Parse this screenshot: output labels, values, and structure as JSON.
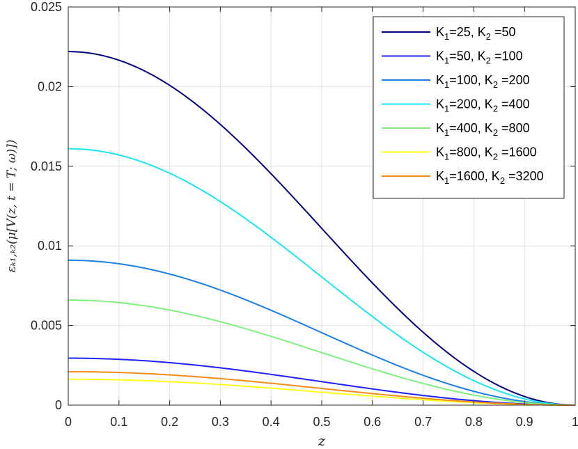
{
  "chart_data": {
    "type": "line",
    "xlabel": "z",
    "ylabel": "εₖ₁,ₖ₂(μ[V(z, t = T; ω)])",
    "xlim": [
      0,
      1
    ],
    "ylim": [
      0,
      0.025
    ],
    "xticks": [
      "0",
      "0.1",
      "0.2",
      "0.3",
      "0.4",
      "0.5",
      "0.6",
      "0.7",
      "0.8",
      "0.9",
      "1"
    ],
    "yticks": [
      "0",
      "0.005",
      "0.01",
      "0.015",
      "0.02",
      "0.025"
    ],
    "grid": true,
    "legend_position": "top-right",
    "curve_shape": "cosine-like decay from peak at z=0 to zero at z=1",
    "series": [
      {
        "name": "K1=25, K2 =50",
        "k1": "25",
        "k2": "=50",
        "color": "#000080",
        "y_at_z0": 0.0222,
        "x": [
          0,
          0.1,
          0.2,
          0.3,
          0.4,
          0.5,
          0.6,
          0.7,
          0.8,
          0.9,
          1.0
        ],
        "y": [
          0.0222,
          0.02167,
          0.02015,
          0.01777,
          0.01481,
          0.0111,
          0.00739,
          0.00443,
          0.00205,
          0.00053,
          0.0
        ]
      },
      {
        "name": "K1=50, K2 =100",
        "k1": "50",
        "k2": "=100",
        "color": "#1f1fff",
        "y_at_z0": 0.00295,
        "x": [
          0,
          0.1,
          0.2,
          0.3,
          0.4,
          0.5,
          0.6,
          0.7,
          0.8,
          0.9,
          1.0
        ],
        "y": [
          0.00295,
          0.00288,
          0.00268,
          0.00236,
          0.00196,
          0.00148,
          0.00098,
          0.00059,
          0.00027,
          7e-05,
          0.0
        ]
      },
      {
        "name": "K1=100, K2 =200",
        "k1": "100",
        "k2": "=200",
        "color": "#1a7fe6",
        "y_at_z0": 0.0091,
        "x": [
          0,
          0.1,
          0.2,
          0.3,
          0.4,
          0.5,
          0.6,
          0.7,
          0.8,
          0.9,
          1.0
        ],
        "y": [
          0.0091,
          0.00889,
          0.00826,
          0.00729,
          0.00607,
          0.00455,
          0.00303,
          0.00182,
          0.00084,
          0.00022,
          0.0
        ]
      },
      {
        "name": "K1=200, K2 =400",
        "k1": "200",
        "k2": "=400",
        "color": "#19e6f0",
        "y_at_z0": 0.0161,
        "x": [
          0,
          0.1,
          0.2,
          0.3,
          0.4,
          0.5,
          0.6,
          0.7,
          0.8,
          0.9,
          1.0
        ],
        "y": [
          0.0161,
          0.01572,
          0.01461,
          0.01289,
          0.01074,
          0.00805,
          0.00536,
          0.00322,
          0.00149,
          0.00038,
          0.0
        ]
      },
      {
        "name": "K1=400, K2 =800",
        "k1": "400",
        "k2": "=800",
        "color": "#7ff07f",
        "y_at_z0": 0.0066,
        "x": [
          0,
          0.1,
          0.2,
          0.3,
          0.4,
          0.5,
          0.6,
          0.7,
          0.8,
          0.9,
          1.0
        ],
        "y": [
          0.0066,
          0.00644,
          0.00599,
          0.00528,
          0.0044,
          0.0033,
          0.0022,
          0.00132,
          0.00061,
          0.00016,
          0.0
        ]
      },
      {
        "name": "K1=800, K2 =1600",
        "k1": "800",
        "k2": "=1600",
        "color": "#ffff1a",
        "y_at_z0": 0.00163,
        "x": [
          0,
          0.1,
          0.2,
          0.3,
          0.4,
          0.5,
          0.6,
          0.7,
          0.8,
          0.9,
          1.0
        ],
        "y": [
          0.00163,
          0.00159,
          0.00148,
          0.0013,
          0.00109,
          0.00082,
          0.00054,
          0.00033,
          0.00015,
          4e-05,
          0.0
        ]
      },
      {
        "name": "K1=1600, K2 =3200",
        "k1": "1600",
        "k2": "=3200",
        "color": "#f58c1a",
        "y_at_z0": 0.0021,
        "x": [
          0,
          0.1,
          0.2,
          0.3,
          0.4,
          0.5,
          0.6,
          0.7,
          0.8,
          0.9,
          1.0
        ],
        "y": [
          0.0021,
          0.00205,
          0.00191,
          0.00168,
          0.0014,
          0.00105,
          0.0007,
          0.00042,
          0.00019,
          5e-05,
          0.0
        ]
      }
    ]
  }
}
